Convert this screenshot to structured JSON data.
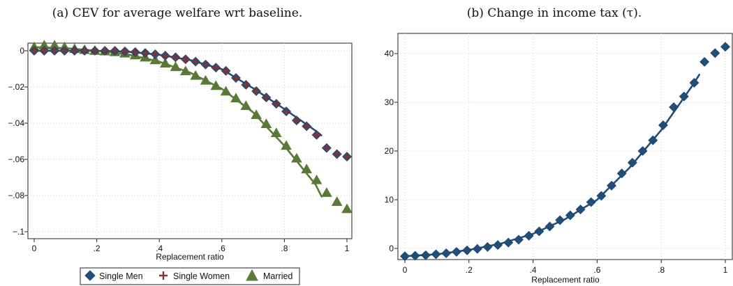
{
  "colors": {
    "single_men": "#1f4e79",
    "single_women": "#8b2f3a",
    "married": "#587a36",
    "grid": "#d0d0d0"
  },
  "chart_data": [
    {
      "type": "scatter",
      "title": "(a) CEV for average welfare wrt baseline.",
      "xlabel": "Replacement ratio",
      "ylabel": "",
      "xlim": [
        0,
        1
      ],
      "ylim": [
        -0.1,
        0
      ],
      "x_ticks": [
        0,
        0.2,
        0.4,
        0.6,
        0.8,
        1
      ],
      "x_tick_labels": [
        "0",
        ".2",
        ".4",
        ".6",
        ".8",
        "1"
      ],
      "y_ticks": [
        0,
        -0.02,
        -0.04,
        -0.06,
        -0.08,
        -0.1
      ],
      "y_tick_labels": [
        "0",
        "−.02",
        "−.04",
        "−.06",
        "−.08",
        "−.1"
      ],
      "grid": true,
      "legend_position": "bottom",
      "series": [
        {
          "name": "Single Men",
          "marker": "diamond",
          "color_key": "single_men",
          "x": [
            0,
            0.032,
            0.065,
            0.097,
            0.129,
            0.161,
            0.194,
            0.226,
            0.258,
            0.29,
            0.323,
            0.355,
            0.387,
            0.419,
            0.452,
            0.484,
            0.516,
            0.548,
            0.581,
            0.613,
            0.645,
            0.677,
            0.71,
            0.742,
            0.774,
            0.806,
            0.839,
            0.871,
            0.903,
            0.935,
            0.968,
            1.0
          ],
          "y": [
            0,
            0,
            0,
            0,
            0,
            0,
            0,
            0,
            0,
            -0.0003,
            -0.0007,
            -0.0012,
            -0.0019,
            -0.0027,
            -0.0036,
            -0.0047,
            -0.006,
            -0.0076,
            -0.0093,
            -0.0111,
            -0.015,
            -0.0188,
            -0.0223,
            -0.0258,
            -0.0293,
            -0.0335,
            -0.0385,
            -0.0417,
            -0.0465,
            -0.0537,
            -0.0571,
            -0.0585
          ],
          "fit_x": [
            0,
            0.1,
            0.2,
            0.3,
            0.4,
            0.5,
            0.6,
            0.7,
            0.8,
            0.9,
            0.92
          ],
          "fit_y": [
            0,
            0,
            0,
            -0.0005,
            -0.0022,
            -0.0052,
            -0.0102,
            -0.0207,
            -0.0322,
            -0.0442,
            -0.047
          ]
        },
        {
          "name": "Single Women",
          "marker": "plus",
          "color_key": "single_women",
          "x": [
            0,
            0.032,
            0.065,
            0.097,
            0.129,
            0.161,
            0.194,
            0.226,
            0.258,
            0.29,
            0.323,
            0.355,
            0.387,
            0.419,
            0.452,
            0.484,
            0.516,
            0.548,
            0.581,
            0.613,
            0.645,
            0.677,
            0.71,
            0.742,
            0.774,
            0.806,
            0.839,
            0.871,
            0.903,
            0.935,
            0.968,
            1.0
          ],
          "y": [
            0,
            0,
            0,
            0,
            0,
            0,
            0,
            0,
            0,
            -0.0003,
            -0.0007,
            -0.0012,
            -0.0019,
            -0.0027,
            -0.0036,
            -0.0047,
            -0.006,
            -0.0076,
            -0.0093,
            -0.0111,
            -0.015,
            -0.0188,
            -0.0223,
            -0.0258,
            -0.0293,
            -0.0335,
            -0.0385,
            -0.0417,
            -0.0465,
            -0.0537,
            -0.0571,
            -0.0585
          ]
        },
        {
          "name": "Married",
          "marker": "triangle",
          "color_key": "married",
          "x": [
            0,
            0.032,
            0.065,
            0.097,
            0.129,
            0.161,
            0.194,
            0.226,
            0.258,
            0.29,
            0.323,
            0.355,
            0.387,
            0.419,
            0.452,
            0.484,
            0.516,
            0.548,
            0.581,
            0.613,
            0.645,
            0.677,
            0.71,
            0.742,
            0.774,
            0.806,
            0.839,
            0.871,
            0.903,
            0.935,
            0.968,
            1.0
          ],
          "y": [
            0.002,
            0.003,
            0.003,
            0.002,
            0.001,
            0.0005,
            0,
            -0.0003,
            -0.0007,
            -0.0015,
            -0.0025,
            -0.0037,
            -0.0052,
            -0.007,
            -0.009,
            -0.0113,
            -0.0138,
            -0.0165,
            -0.0194,
            -0.0225,
            -0.0263,
            -0.0305,
            -0.0355,
            -0.0405,
            -0.0455,
            -0.0525,
            -0.0595,
            -0.0655,
            -0.0715,
            -0.0785,
            -0.0835,
            -0.0875
          ],
          "fit_x": [
            0,
            0.1,
            0.2,
            0.3,
            0.4,
            0.5,
            0.6,
            0.7,
            0.8,
            0.9,
            0.92
          ],
          "fit_y": [
            0.002,
            0.0015,
            0,
            -0.002,
            -0.006,
            -0.0122,
            -0.021,
            -0.034,
            -0.0525,
            -0.074,
            -0.081
          ]
        }
      ]
    },
    {
      "type": "scatter",
      "title": "(b) Change in income tax (τ).",
      "xlabel": "Replacement ratio",
      "ylabel": "",
      "xlim": [
        0,
        1
      ],
      "ylim": [
        -2,
        43
      ],
      "x_ticks": [
        0,
        0.2,
        0.4,
        0.6,
        0.8,
        1
      ],
      "x_tick_labels": [
        "0",
        ".2",
        ".4",
        ".6",
        ".8",
        "1"
      ],
      "y_ticks": [
        0,
        10,
        20,
        30,
        40
      ],
      "y_tick_labels": [
        "0",
        "10",
        "20",
        "30",
        "40"
      ],
      "grid": true,
      "series": [
        {
          "name": "",
          "marker": "diamond",
          "color_key": "single_men",
          "x": [
            0,
            0.032,
            0.065,
            0.097,
            0.129,
            0.161,
            0.194,
            0.226,
            0.258,
            0.29,
            0.323,
            0.355,
            0.387,
            0.419,
            0.452,
            0.484,
            0.516,
            0.548,
            0.581,
            0.613,
            0.645,
            0.677,
            0.71,
            0.742,
            0.774,
            0.806,
            0.839,
            0.871,
            0.903,
            0.935,
            0.968,
            1.0
          ],
          "y": [
            -1.6,
            -1.5,
            -1.4,
            -1.2,
            -1.0,
            -0.7,
            -0.4,
            -0.1,
            0.3,
            0.7,
            1.2,
            1.8,
            2.6,
            3.5,
            4.5,
            5.8,
            6.8,
            8.0,
            9.5,
            10.8,
            12.9,
            15.4,
            17.6,
            20.0,
            22.2,
            25.3,
            29.0,
            31.2,
            34.0,
            38.3,
            40.1,
            41.4
          ],
          "fit_x": [
            0,
            0.1,
            0.2,
            0.3,
            0.4,
            0.5,
            0.6,
            0.7,
            0.8,
            0.9,
            0.92
          ],
          "fit_y": [
            -1.6,
            -1.2,
            -0.3,
            1.0,
            3.0,
            6.0,
            10.0,
            16.5,
            24.3,
            33.7,
            35.8
          ]
        }
      ]
    }
  ]
}
